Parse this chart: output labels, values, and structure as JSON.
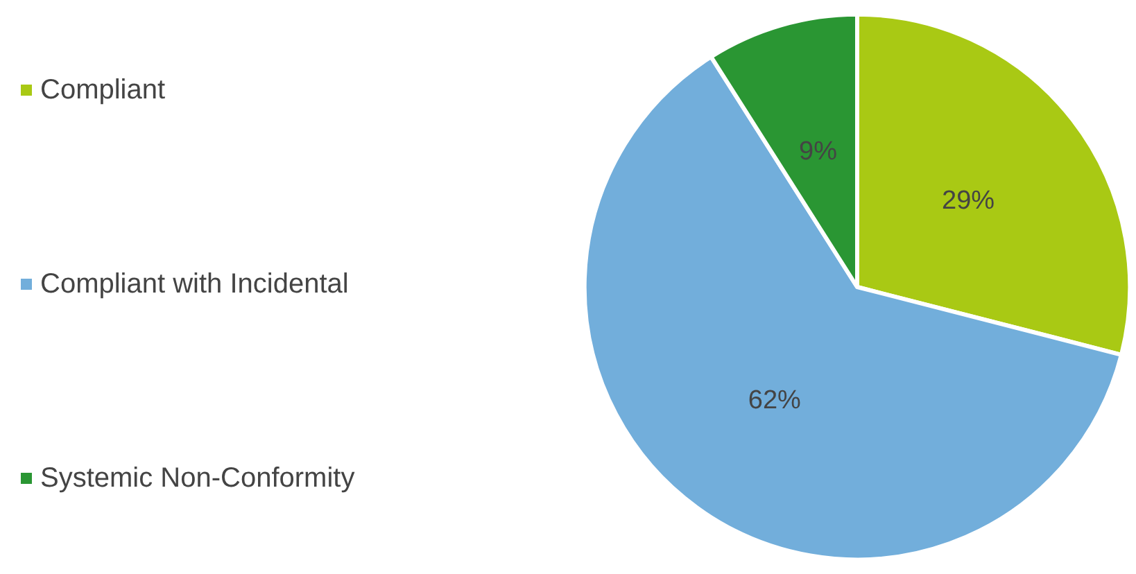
{
  "chart_data": {
    "type": "pie",
    "categories": [
      "Compliant",
      "Compliant with Incidental",
      "Systemic Non-Conformity"
    ],
    "values": [
      29,
      62,
      9
    ],
    "colors": [
      "#a9c914",
      "#72aedb",
      "#2a9633"
    ],
    "legend": "left",
    "value_labels": [
      "29%",
      "62%",
      "9%"
    ]
  }
}
